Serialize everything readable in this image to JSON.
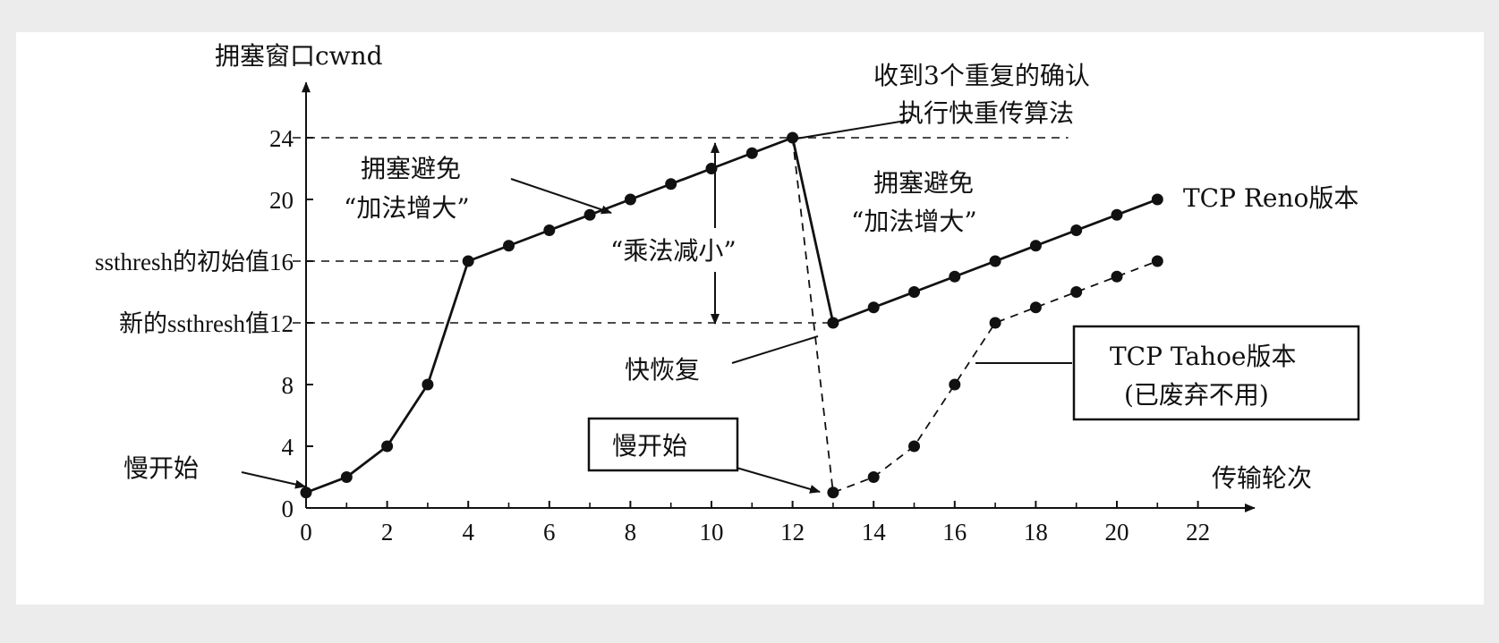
{
  "chart_data": {
    "type": "line",
    "ylabel": "拥塞窗口cwnd",
    "xlabel": "传输轮次",
    "xlim": [
      0,
      23
    ],
    "ylim": [
      0,
      27
    ],
    "x_ticks": [
      0,
      2,
      4,
      6,
      8,
      10,
      12,
      14,
      16,
      18,
      20,
      22
    ],
    "y_ticks": [
      {
        "value": 0,
        "label": "0"
      },
      {
        "value": 4,
        "label": "4"
      },
      {
        "value": 8,
        "label": "8"
      },
      {
        "value": 12,
        "label": "新的ssthresh值12"
      },
      {
        "value": 16,
        "label": "ssthresh的初始值16"
      },
      {
        "value": 20,
        "label": "20"
      },
      {
        "value": 24,
        "label": "24"
      }
    ],
    "series": [
      {
        "name": "TCP Reno版本",
        "style": "solid",
        "x": [
          0,
          1,
          2,
          3,
          4,
          5,
          6,
          7,
          8,
          9,
          10,
          11,
          12,
          13,
          14,
          15,
          16,
          17,
          18,
          19,
          20,
          21
        ],
        "y": [
          1,
          2,
          4,
          8,
          16,
          17,
          18,
          19,
          20,
          21,
          22,
          23,
          24,
          12,
          13,
          14,
          15,
          16,
          17,
          18,
          19,
          20
        ]
      },
      {
        "name": "TCP Tahoe版本(已废弃不用)",
        "style": "dashed",
        "x": [
          12,
          13,
          14,
          15,
          16,
          17,
          18,
          19,
          20,
          21
        ],
        "y": [
          24,
          1,
          2,
          4,
          8,
          12,
          13,
          14,
          15,
          16
        ]
      }
    ],
    "reference_lines": [
      {
        "y": 24,
        "x_end": 18.8
      },
      {
        "y": 16,
        "x_end": 4
      },
      {
        "y": 12,
        "x_end": 13
      }
    ],
    "annotations": {
      "slow_start_left": "慢开始",
      "ca_left_1": "拥塞避免",
      "ca_left_2": "“加法增大”",
      "md": "“乘法减小”",
      "dup_ack_1": "收到3个重复的确认",
      "dup_ack_2": "执行快重传算法",
      "ca_right_1": "拥塞避免",
      "ca_right_2": "“加法增大”",
      "reno_label": "TCP Reno版本",
      "fast_recovery": "快恢复",
      "slow_start_box": "慢开始",
      "tahoe_line1": "TCP Tahoe版本",
      "tahoe_line2": "(已废弃不用)"
    }
  },
  "colors": {
    "ink": "#111111",
    "background": "#ffffff",
    "page": "#ececec"
  }
}
